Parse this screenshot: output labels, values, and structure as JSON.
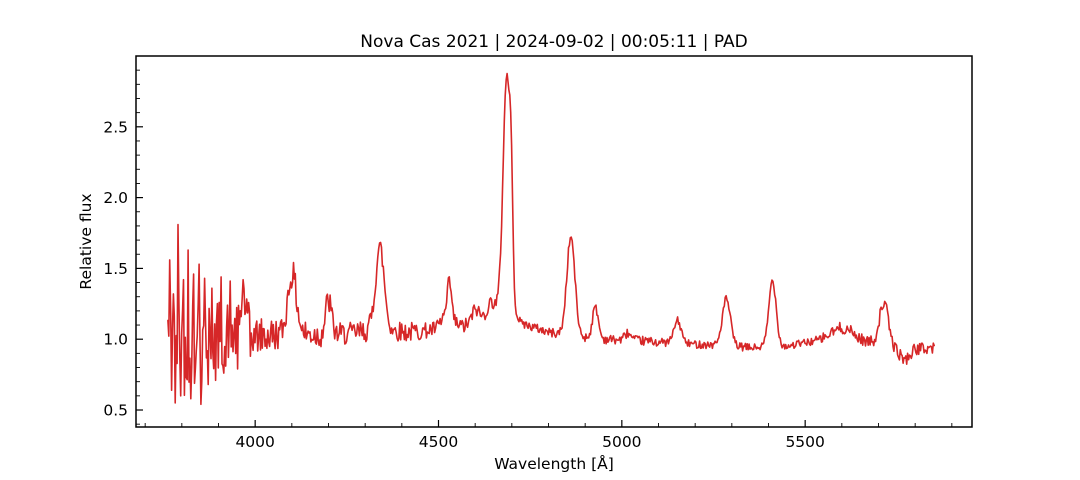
{
  "figure": {
    "background_color": "#ffffff",
    "frame_color": "#000000"
  },
  "chart_data": {
    "type": "line",
    "title": "Nova Cas 2021 | 2024-09-02 | 00:05:11 | PAD",
    "xlabel": "Wavelength [Å]",
    "ylabel": "Relative flux",
    "xlim": [
      3675,
      5955
    ],
    "ylim": [
      0.38,
      3.0
    ],
    "grid": false,
    "legend_position": "none",
    "line_color": "#d62728",
    "line_width": 1.6,
    "x_major_ticks": [
      4000,
      4500,
      5000,
      5500
    ],
    "x_tick_labels": [
      "4000",
      "4500",
      "5000",
      "5500"
    ],
    "x_minor_tick_step": 100,
    "y_major_ticks": [
      0.5,
      1.0,
      1.5,
      2.0,
      2.5
    ],
    "y_tick_labels": [
      "0.5",
      "1.0",
      "1.5",
      "2.0",
      "2.5"
    ],
    "y_minor_tick_step": 0.1,
    "tick_direction": "in",
    "spectrum": {
      "wavelength_start": 3762,
      "wavelength_end": 5853,
      "sample_step": 2.5,
      "noise_seed": 42,
      "flux_max": 2.87,
      "flux_min": 0.5,
      "continuum_anchors": [
        [
          3762,
          1.06
        ],
        [
          3830,
          1.03
        ],
        [
          3900,
          1.02
        ],
        [
          3960,
          1.03
        ],
        [
          4020,
          1.02
        ],
        [
          4100,
          1.04
        ],
        [
          4180,
          1.03
        ],
        [
          4260,
          1.04
        ],
        [
          4340,
          1.07
        ],
        [
          4420,
          1.05
        ],
        [
          4500,
          1.07
        ],
        [
          4570,
          1.09
        ],
        [
          4630,
          1.13
        ],
        [
          4665,
          1.16
        ],
        [
          4700,
          1.16
        ],
        [
          4740,
          1.1
        ],
        [
          4800,
          1.05
        ],
        [
          4870,
          1.02
        ],
        [
          4950,
          1.0
        ],
        [
          5050,
          0.99
        ],
        [
          5150,
          0.97
        ],
        [
          5250,
          0.96
        ],
        [
          5350,
          0.94
        ],
        [
          5450,
          0.95
        ],
        [
          5530,
          0.99
        ],
        [
          5620,
          1.0
        ],
        [
          5700,
          0.97
        ],
        [
          5745,
          0.93
        ],
        [
          5772,
          0.85
        ],
        [
          5800,
          0.93
        ],
        [
          5853,
          0.94
        ]
      ],
      "emission_peaks": [
        {
          "center": 3968,
          "amplitude": 0.25,
          "sigma": 8
        },
        {
          "center": 4101,
          "amplitude": 0.42,
          "sigma": 12
        },
        {
          "center": 4200,
          "amplitude": 0.24,
          "sigma": 8
        },
        {
          "center": 4340,
          "amplitude": 0.58,
          "sigma": 12
        },
        {
          "center": 4525,
          "amplitude": 0.12,
          "sigma": 14
        },
        {
          "center": 4530,
          "amplitude": 0.22,
          "sigma": 5
        },
        {
          "center": 4601,
          "amplitude": 0.1,
          "sigma": 10
        },
        {
          "center": 4645,
          "amplitude": 0.12,
          "sigma": 14
        },
        {
          "center": 4686,
          "amplitude": 1.7,
          "sigma": 10
        },
        {
          "center": 4698,
          "amplitude": 0.55,
          "sigma": 4
        },
        {
          "center": 4861,
          "amplitude": 0.7,
          "sigma": 11
        },
        {
          "center": 4928,
          "amplitude": 0.22,
          "sigma": 8
        },
        {
          "center": 5016,
          "amplitude": 0.05,
          "sigma": 8
        },
        {
          "center": 5152,
          "amplitude": 0.16,
          "sigma": 10
        },
        {
          "center": 5285,
          "amplitude": 0.33,
          "sigma": 11
        },
        {
          "center": 5411,
          "amplitude": 0.47,
          "sigma": 10
        },
        {
          "center": 5600,
          "amplitude": 0.08,
          "sigma": 28
        },
        {
          "center": 5715,
          "amplitude": 0.3,
          "sigma": 12
        }
      ],
      "noise_segments": [
        [
          3762,
          3778,
          0.36
        ],
        [
          3778,
          3812,
          0.44
        ],
        [
          3812,
          3865,
          0.36
        ],
        [
          3865,
          3925,
          0.27
        ],
        [
          3925,
          3985,
          0.18
        ],
        [
          3985,
          4060,
          0.13
        ],
        [
          4060,
          4210,
          0.1
        ],
        [
          4210,
          4330,
          0.08
        ],
        [
          4330,
          4450,
          0.07
        ],
        [
          4450,
          4575,
          0.055
        ],
        [
          4575,
          4672,
          0.05
        ],
        [
          4672,
          4730,
          0.025
        ],
        [
          4730,
          5100,
          0.032
        ],
        [
          5100,
          5545,
          0.028
        ],
        [
          5545,
          5690,
          0.042
        ],
        [
          5690,
          5853,
          0.042
        ]
      ],
      "extreme_points": [
        [
          3766,
          1.56
        ],
        [
          3771,
          0.64
        ],
        [
          3777,
          1.32
        ],
        [
          3783,
          0.55
        ],
        [
          3790,
          1.81
        ],
        [
          3797,
          0.6
        ],
        [
          3805,
          1.42
        ],
        [
          3811,
          0.73
        ],
        [
          3817,
          1.63
        ],
        [
          3824,
          0.58
        ],
        [
          3831,
          1.46
        ],
        [
          3839,
          0.92
        ],
        [
          3846,
          1.53
        ],
        [
          3853,
          0.54
        ],
        [
          3861,
          1.43
        ],
        [
          3871,
          0.68
        ],
        [
          3882,
          1.36
        ],
        [
          3893,
          0.71
        ],
        [
          3906,
          1.44
        ],
        [
          3919,
          0.81
        ],
        [
          3933,
          1.41
        ],
        [
          3951,
          0.79
        ],
        [
          3966,
          1.42
        ],
        [
          3986,
          0.88
        ]
      ]
    }
  }
}
